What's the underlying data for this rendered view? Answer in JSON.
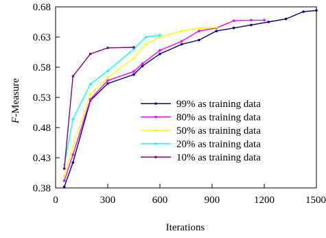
{
  "chart_data": {
    "type": "line",
    "title": "",
    "xlabel": "Iterations",
    "ylabel_italic": "F",
    "ylabel_rest": "-Measure",
    "xlim": [
      0,
      1500
    ],
    "ylim": [
      0.38,
      0.68
    ],
    "xticks": [
      0,
      300,
      600,
      900,
      1200,
      1500
    ],
    "xtick_labels": [
      "0",
      "300",
      "600",
      "900",
      "1200",
      "1500"
    ],
    "yticks": [
      0.38,
      0.43,
      0.48,
      0.53,
      0.58,
      0.63,
      0.68
    ],
    "ytick_labels": [
      "0.38",
      "0.43",
      "0.48",
      "0.53",
      "0.58",
      "0.63",
      "0.68"
    ],
    "grid": false,
    "legend_position": "bottom-right",
    "series": [
      {
        "name": "99% as training data",
        "color": "#000080",
        "x": [
          50,
          100,
          200,
          300,
          450,
          500,
          600,
          725,
          825,
          925,
          1025,
          1125,
          1225,
          1325,
          1425,
          1500
        ],
        "y": [
          0.382,
          0.422,
          0.525,
          0.553,
          0.568,
          0.582,
          0.602,
          0.618,
          0.625,
          0.64,
          0.645,
          0.65,
          0.655,
          0.66,
          0.672,
          0.674
        ]
      },
      {
        "name": "80% as training data",
        "color": "#ff00ff",
        "x": [
          50,
          100,
          200,
          300,
          450,
          500,
          600,
          725,
          825,
          925,
          1025,
          1125,
          1200
        ],
        "y": [
          0.392,
          0.435,
          0.527,
          0.558,
          0.573,
          0.586,
          0.608,
          0.623,
          0.64,
          0.645,
          0.657,
          0.658,
          0.658
        ]
      },
      {
        "name": "50% as training data",
        "color": "#ffff00",
        "x": [
          50,
          100,
          200,
          300,
          450,
          520,
          600,
          725,
          825,
          925
        ],
        "y": [
          0.4,
          0.448,
          0.535,
          0.563,
          0.595,
          0.618,
          0.63,
          0.64,
          0.645,
          0.646
        ]
      },
      {
        "name": "20% as training data",
        "color": "#00ffff",
        "x": [
          50,
          100,
          200,
          300,
          450,
          520,
          600
        ],
        "y": [
          0.418,
          0.494,
          0.552,
          0.574,
          0.61,
          0.63,
          0.633
        ]
      },
      {
        "name": "10% as training data",
        "color": "#800080",
        "x": [
          50,
          100,
          200,
          300,
          450
        ],
        "y": [
          0.412,
          0.565,
          0.602,
          0.612,
          0.613
        ]
      }
    ]
  }
}
